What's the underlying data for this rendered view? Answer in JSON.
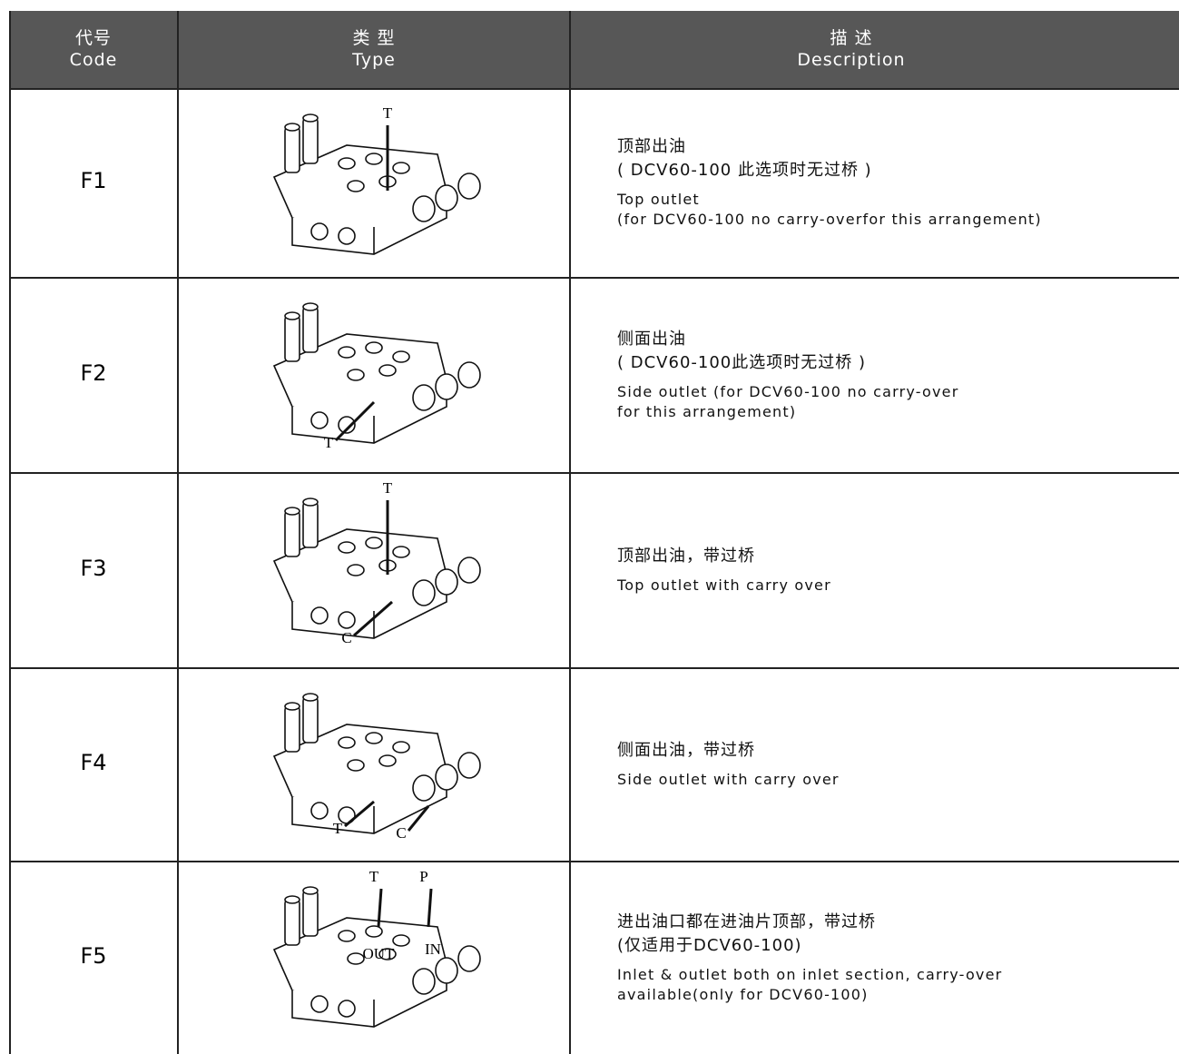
{
  "header": {
    "code": {
      "zh": "代号",
      "en": "Code"
    },
    "type": {
      "zh": "类 型",
      "en": "Type"
    },
    "description": {
      "zh": "描 述",
      "en": "Description"
    }
  },
  "table": {
    "rows": [
      {
        "code": "F1",
        "labels": [
          "T"
        ],
        "description": {
          "zh": [
            "顶部出油",
            "( DCV60-100 此选项时无过桥 )"
          ],
          "en": [
            "Top outlet",
            "(for DCV60-100 no carry-overfor this arrangement)"
          ]
        }
      },
      {
        "code": "F2",
        "labels": [
          "T"
        ],
        "description": {
          "zh": [
            "侧面出油",
            "( DCV60-100此选项时无过桥 )"
          ],
          "en": [
            "Side outlet   (for DCV60-100 no carry-over",
            "for this arrangement)"
          ]
        }
      },
      {
        "code": "F3",
        "labels": [
          "T",
          "C"
        ],
        "description": {
          "zh": [
            "顶部出油，带过桥"
          ],
          "en": [
            "Top outlet with carry over"
          ]
        }
      },
      {
        "code": "F4",
        "labels": [
          "T",
          "C"
        ],
        "description": {
          "zh": [
            "侧面出油，带过桥"
          ],
          "en": [
            "Side outlet with carry over"
          ]
        }
      },
      {
        "code": "F5",
        "labels": [
          "T",
          "P",
          "OUT",
          "IN"
        ],
        "description": {
          "zh": [
            "进出油口都在进油片顶部，带过桥",
            "(仅适用于DCV60-100)"
          ],
          "en": [
            "Inlet & outlet both on inlet section, carry-over",
            "available(only for DCV60-100)"
          ]
        }
      }
    ]
  }
}
